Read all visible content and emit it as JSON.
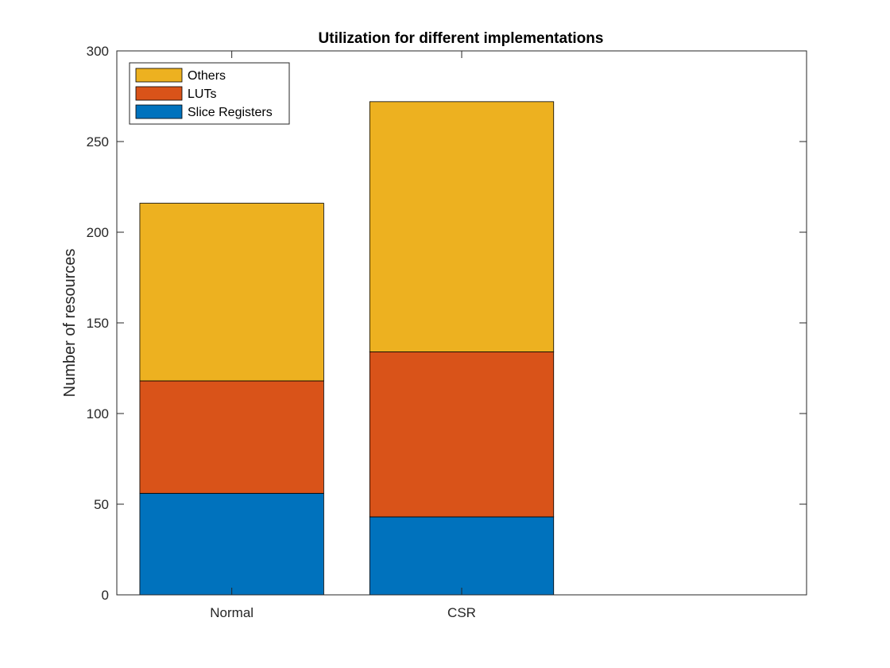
{
  "chart_data": {
    "type": "bar",
    "stacked": true,
    "title": "Utilization for different implementations",
    "xlabel": "",
    "ylabel": "Number of resources",
    "categories": [
      "Normal",
      "CSR"
    ],
    "xlim": [
      0.5,
      3.5
    ],
    "ylim": [
      0,
      300
    ],
    "yticks": [
      0,
      50,
      100,
      150,
      200,
      250,
      300
    ],
    "grid": false,
    "legend_position": "top-left",
    "series": [
      {
        "name": "Slice Registers",
        "color": "#0072BD",
        "values": [
          56,
          43
        ]
      },
      {
        "name": "LUTs",
        "color": "#D95319",
        "values": [
          62,
          91
        ]
      },
      {
        "name": "Others",
        "color": "#EDB120",
        "values": [
          98,
          138
        ]
      }
    ]
  }
}
